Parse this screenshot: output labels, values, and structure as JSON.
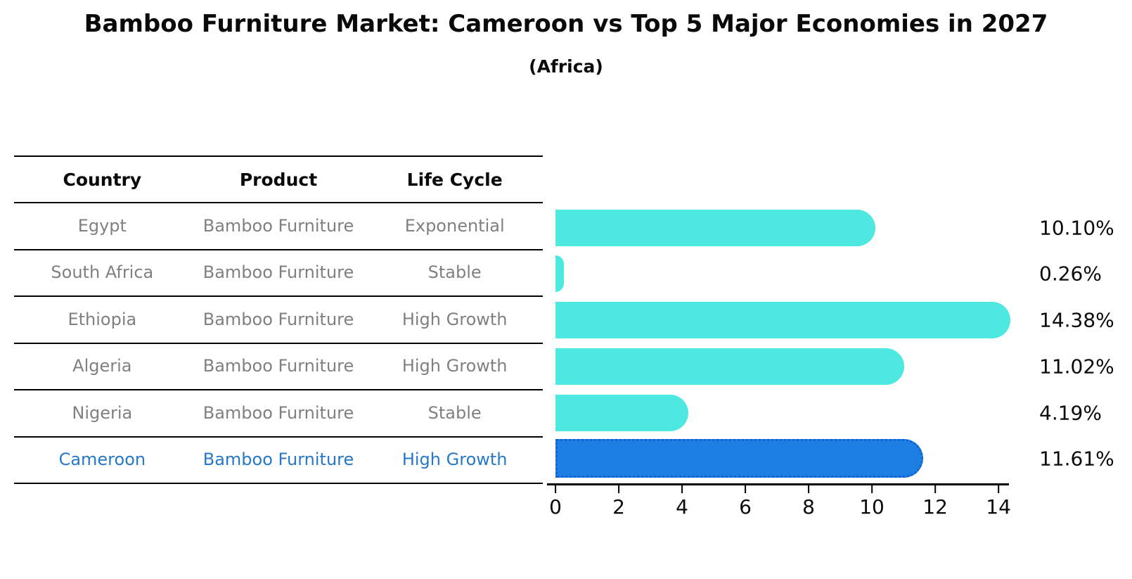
{
  "title": "Bamboo Furniture Market: Cameroon vs Top 5 Major Economies in 2027",
  "subtitle": "(Africa)",
  "table": {
    "headers": [
      "Country",
      "Product",
      "Life Cycle"
    ],
    "rows": [
      {
        "country": "Egypt",
        "product": "Bamboo Furniture",
        "life_cycle": "Exponential",
        "highlight": false
      },
      {
        "country": "South Africa",
        "product": "Bamboo Furniture",
        "life_cycle": "Stable",
        "highlight": false
      },
      {
        "country": "Ethiopia",
        "product": "Bamboo Furniture",
        "life_cycle": "High Growth",
        "highlight": false
      },
      {
        "country": "Algeria",
        "product": "Bamboo Furniture",
        "life_cycle": "High Growth",
        "highlight": false
      },
      {
        "country": "Nigeria",
        "product": "Bamboo Furniture",
        "life_cycle": "Stable",
        "highlight": false
      },
      {
        "country": "Cameroon",
        "product": "Bamboo Furniture",
        "life_cycle": "High Growth",
        "highlight": true
      }
    ]
  },
  "chart_data": {
    "type": "bar",
    "orientation": "horizontal",
    "title": "Bamboo Furniture Market: Cameroon vs Top 5 Major Economies in 2027",
    "subtitle": "(Africa)",
    "categories": [
      "Egypt",
      "South Africa",
      "Ethiopia",
      "Algeria",
      "Nigeria",
      "Cameroon"
    ],
    "values": [
      10.1,
      0.26,
      14.38,
      11.02,
      4.19,
      11.61
    ],
    "value_labels": [
      "10.10%",
      "0.26%",
      "14.38%",
      "11.02%",
      "4.19%",
      "11.61%"
    ],
    "xticks": [
      0,
      2,
      4,
      6,
      8,
      10,
      12,
      14
    ],
    "xlim": [
      0,
      14.22
    ],
    "grid": false,
    "legend": "none",
    "bar_color": "#4de9e0",
    "highlight_color": "#1e7fe3",
    "highlight_border_color": "#1262d4",
    "highlight_index": 5
  },
  "colors": {
    "row_text": "#808080",
    "header_text": "#0a0a0a",
    "highlight_text": "#2878c8",
    "axis": "#000000",
    "background": "#ffffff"
  }
}
